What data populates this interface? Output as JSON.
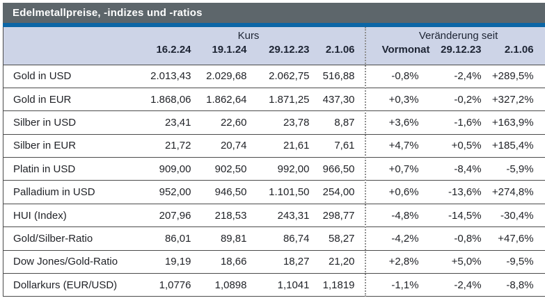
{
  "title": "Edelmetallpreise, -indizes und -ratios",
  "colors": {
    "title_bar_bg": "#5d666b",
    "title_text": "#ffffff",
    "accent_blue": "#0c66a6",
    "header_band_bg": "#cdd4e7",
    "grid_line": "#4a4a4a",
    "dotted_separator": "#8f8f8f",
    "body_text": "#1f2126"
  },
  "chart_data": {
    "type": "table",
    "title": "Edelmetallpreise, -indizes und -ratios",
    "column_groups": [
      {
        "label": "Kurs",
        "columns": [
          "16.2.24",
          "19.1.24",
          "29.12.23",
          "2.1.06"
        ]
      },
      {
        "label": "Veränderung seit",
        "columns": [
          "Vormonat",
          "29.12.23",
          "2.1.06"
        ]
      }
    ],
    "rows": [
      {
        "label": "Gold in USD",
        "values": [
          "2.013,43",
          "2.029,68",
          "2.062,75",
          "516,88",
          "-0,8%",
          "-2,4%",
          "+289,5%"
        ]
      },
      {
        "label": "Gold in EUR",
        "values": [
          "1.868,06",
          "1.862,64",
          "1.871,25",
          "437,30",
          "+0,3%",
          "-0,2%",
          "+327,2%"
        ]
      },
      {
        "label": "Silber in USD",
        "values": [
          "23,41",
          "22,60",
          "23,78",
          "8,87",
          "+3,6%",
          "-1,6%",
          "+163,9%"
        ]
      },
      {
        "label": "Silber in EUR",
        "values": [
          "21,72",
          "20,74",
          "21,61",
          "7,61",
          "+4,7%",
          "+0,5%",
          "+185,4%"
        ]
      },
      {
        "label": "Platin in USD",
        "values": [
          "909,00",
          "902,50",
          "992,00",
          "966,50",
          "+0,7%",
          "-8,4%",
          "-5,9%"
        ]
      },
      {
        "label": "Palladium in USD",
        "values": [
          "952,00",
          "946,50",
          "1.101,50",
          "254,00",
          "+0,6%",
          "-13,6%",
          "+274,8%"
        ]
      },
      {
        "label": "HUI (Index)",
        "values": [
          "207,96",
          "218,53",
          "243,31",
          "298,77",
          "-4,8%",
          "-14,5%",
          "-30,4%"
        ]
      },
      {
        "label": "Gold/Silber-Ratio",
        "values": [
          "86,01",
          "89,81",
          "86,74",
          "58,27",
          "-4,2%",
          "-0,8%",
          "+47,6%"
        ]
      },
      {
        "label": "Dow Jones/Gold-Ratio",
        "values": [
          "19,19",
          "18,66",
          "18,27",
          "21,20",
          "+2,8%",
          "+5,0%",
          "-9,5%"
        ]
      },
      {
        "label": "Dollarkurs (EUR/USD)",
        "values": [
          "1,0776",
          "1,0898",
          "1,1041",
          "1,1819",
          "-1,1%",
          "-2,4%",
          "-8,8%"
        ]
      }
    ]
  }
}
